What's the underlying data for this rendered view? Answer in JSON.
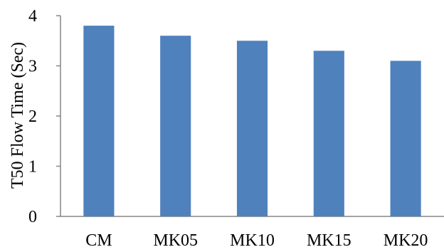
{
  "chart_data": {
    "type": "bar",
    "categories": [
      "CM",
      "MK05",
      "MK10",
      "MK15",
      "MK20"
    ],
    "values": [
      3.8,
      3.6,
      3.5,
      3.3,
      3.1
    ],
    "title": "",
    "xlabel": "",
    "ylabel": "T50 Flow Time (Sec)",
    "ylim": [
      0,
      4
    ],
    "yticks": [
      0,
      1,
      2,
      3,
      4
    ],
    "grid": false,
    "legend": "none",
    "colors": {
      "bar": "#4F81BD",
      "axis": "#868686",
      "text": "#000000"
    }
  }
}
